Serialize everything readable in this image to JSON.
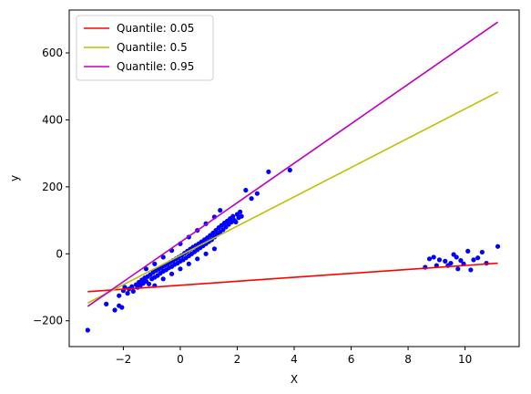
{
  "chart_data": {
    "type": "scatter",
    "xlabel": "X",
    "ylabel": "y",
    "xlim": [
      -3.9,
      11.9
    ],
    "ylim": [
      -277,
      728
    ],
    "xticks": [
      -2,
      0,
      2,
      4,
      6,
      8,
      10
    ],
    "xtick_labels": [
      "−2",
      "0",
      "2",
      "4",
      "6",
      "8",
      "10"
    ],
    "yticks": [
      -200,
      0,
      200,
      400,
      600
    ],
    "ytick_labels": [
      "−200",
      "0",
      "200",
      "400",
      "600"
    ],
    "grid": false,
    "legend_position": "top-left",
    "scatter": {
      "color": "#0000ff",
      "points": [
        [
          -3.25,
          -228
        ],
        [
          -2.6,
          -150
        ],
        [
          -2.3,
          -168
        ],
        [
          -2.15,
          -155
        ],
        [
          -2.05,
          -160
        ],
        [
          -2.15,
          -125
        ],
        [
          -2.0,
          -110
        ],
        [
          -1.95,
          -100
        ],
        [
          -1.85,
          -118
        ],
        [
          -1.8,
          -105
        ],
        [
          -1.7,
          -98
        ],
        [
          -1.65,
          -112
        ],
        [
          -1.55,
          -92
        ],
        [
          -1.5,
          -100
        ],
        [
          -1.45,
          -85
        ],
        [
          -1.4,
          -95
        ],
        [
          -1.35,
          -78
        ],
        [
          -1.3,
          -88
        ],
        [
          -1.25,
          -72
        ],
        [
          -1.2,
          -82
        ],
        [
          -1.15,
          -68
        ],
        [
          -1.1,
          -90
        ],
        [
          -1.05,
          -62
        ],
        [
          -1.0,
          -75
        ],
        [
          -0.95,
          -55
        ],
        [
          -0.9,
          -70
        ],
        [
          -0.85,
          -50
        ],
        [
          -0.8,
          -65
        ],
        [
          -0.75,
          -45
        ],
        [
          -0.7,
          -58
        ],
        [
          -0.65,
          -40
        ],
        [
          -0.6,
          -52
        ],
        [
          -0.55,
          -35
        ],
        [
          -0.5,
          -48
        ],
        [
          -0.45,
          -30
        ],
        [
          -0.4,
          -42
        ],
        [
          -0.35,
          -25
        ],
        [
          -0.3,
          -38
        ],
        [
          -0.25,
          -20
        ],
        [
          -0.2,
          -32
        ],
        [
          -0.15,
          -15
        ],
        [
          -0.1,
          -28
        ],
        [
          -0.05,
          -10
        ],
        [
          0.0,
          -22
        ],
        [
          0.05,
          -5
        ],
        [
          0.1,
          -18
        ],
        [
          0.15,
          2
        ],
        [
          0.2,
          -12
        ],
        [
          0.25,
          8
        ],
        [
          0.3,
          -6
        ],
        [
          0.35,
          14
        ],
        [
          0.4,
          0
        ],
        [
          0.45,
          20
        ],
        [
          0.5,
          6
        ],
        [
          0.55,
          25
        ],
        [
          0.6,
          12
        ],
        [
          0.65,
          30
        ],
        [
          0.7,
          18
        ],
        [
          0.75,
          36
        ],
        [
          0.8,
          24
        ],
        [
          0.85,
          42
        ],
        [
          0.9,
          30
        ],
        [
          0.95,
          48
        ],
        [
          1.0,
          36
        ],
        [
          1.05,
          55
        ],
        [
          1.1,
          42
        ],
        [
          1.15,
          62
        ],
        [
          1.2,
          50
        ],
        [
          1.25,
          70
        ],
        [
          1.3,
          58
        ],
        [
          1.35,
          78
        ],
        [
          1.4,
          65
        ],
        [
          1.45,
          85
        ],
        [
          1.5,
          72
        ],
        [
          1.55,
          92
        ],
        [
          1.6,
          80
        ],
        [
          1.65,
          98
        ],
        [
          1.7,
          88
        ],
        [
          1.75,
          105
        ],
        [
          1.8,
          95
        ],
        [
          1.85,
          112
        ],
        [
          1.9,
          100
        ],
        [
          2.0,
          118
        ],
        [
          2.05,
          108
        ],
        [
          2.1,
          125
        ],
        [
          1.95,
          95
        ],
        [
          2.15,
          112
        ],
        [
          -0.9,
          -95
        ],
        [
          -0.6,
          -75
        ],
        [
          -0.3,
          -60
        ],
        [
          0.0,
          -45
        ],
        [
          0.3,
          -30
        ],
        [
          0.6,
          -15
        ],
        [
          0.9,
          0
        ],
        [
          1.2,
          15
        ],
        [
          -1.2,
          -45
        ],
        [
          -0.9,
          -30
        ],
        [
          -0.6,
          -10
        ],
        [
          -0.3,
          10
        ],
        [
          0.0,
          30
        ],
        [
          0.3,
          50
        ],
        [
          0.6,
          70
        ],
        [
          0.9,
          90
        ],
        [
          1.2,
          110
        ],
        [
          2.3,
          190
        ],
        [
          2.5,
          165
        ],
        [
          2.7,
          180
        ],
        [
          3.1,
          245
        ],
        [
          3.85,
          250
        ],
        [
          1.4,
          130
        ],
        [
          8.6,
          -40
        ],
        [
          8.75,
          -15
        ],
        [
          8.9,
          -10
        ],
        [
          9.0,
          -35
        ],
        [
          9.1,
          -18
        ],
        [
          9.3,
          -22
        ],
        [
          9.5,
          -28
        ],
        [
          9.6,
          -2
        ],
        [
          9.7,
          -10
        ],
        [
          9.75,
          -45
        ],
        [
          9.85,
          -20
        ],
        [
          9.95,
          -30
        ],
        [
          10.1,
          8
        ],
        [
          10.2,
          -48
        ],
        [
          10.3,
          -18
        ],
        [
          10.45,
          -12
        ],
        [
          10.6,
          5
        ],
        [
          10.75,
          -28
        ],
        [
          11.15,
          22
        ],
        [
          9.4,
          -35
        ]
      ]
    },
    "lines": [
      {
        "name": "Quantile: 0.05",
        "color": "#ff0000",
        "x": [
          -3.25,
          11.15
        ],
        "y": [
          -113,
          -28
        ]
      },
      {
        "name": "Quantile: 0.5",
        "color": "#bfbf00",
        "x": [
          -3.25,
          11.15
        ],
        "y": [
          -147,
          483
        ]
      },
      {
        "name": "Quantile: 0.95",
        "color": "#bf00bf",
        "x": [
          -3.25,
          11.15
        ],
        "y": [
          -157,
          692
        ]
      }
    ]
  }
}
